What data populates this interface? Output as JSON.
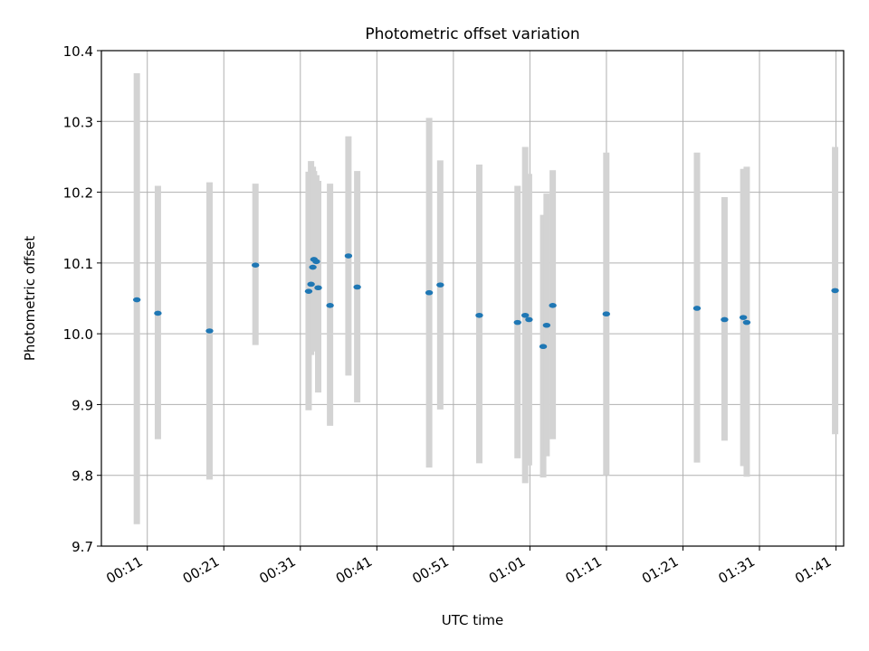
{
  "chart_data": {
    "type": "scatter",
    "title": "Photometric offset variation",
    "xlabel": "UTC time",
    "ylabel": "Photometric offset",
    "xlim": [
      "00:05:00",
      "01:42:00"
    ],
    "ylim": [
      9.7,
      10.4
    ],
    "x_ticks": [
      "00:11",
      "00:21",
      "00:31",
      "00:41",
      "00:51",
      "01:01",
      "01:11",
      "01:21",
      "01:31",
      "01:41"
    ],
    "y_ticks": [
      "9.7",
      "9.8",
      "9.9",
      "10.0",
      "10.1",
      "10.2",
      "10.3",
      "10.4"
    ],
    "grid": true,
    "colors": {
      "marker": "#1f77b4",
      "error_bar": "#d3d3d3",
      "grid": "#b0b0b0"
    },
    "points": [
      {
        "x": "00:09:38",
        "y": 10.048,
        "ylow": 9.731,
        "yhigh": 10.368
      },
      {
        "x": "00:12:23",
        "y": 10.029,
        "ylow": 9.851,
        "yhigh": 10.209
      },
      {
        "x": "00:19:08",
        "y": 10.004,
        "ylow": 9.794,
        "yhigh": 10.214
      },
      {
        "x": "00:25:08",
        "y": 10.097,
        "ylow": 9.984,
        "yhigh": 10.212
      },
      {
        "x": "00:32:05",
        "y": 10.06,
        "ylow": 9.892,
        "yhigh": 10.229
      },
      {
        "x": "00:32:24",
        "y": 10.07,
        "ylow": 9.97,
        "yhigh": 10.244
      },
      {
        "x": "00:32:38",
        "y": 10.094,
        "ylow": 9.975,
        "yhigh": 10.236
      },
      {
        "x": "00:32:47",
        "y": 10.105,
        "ylow": 9.98,
        "yhigh": 10.23
      },
      {
        "x": "00:33:05",
        "y": 10.102,
        "ylow": 9.983,
        "yhigh": 10.224
      },
      {
        "x": "00:33:20",
        "y": 10.065,
        "ylow": 9.917,
        "yhigh": 10.216
      },
      {
        "x": "00:34:53",
        "y": 10.04,
        "ylow": 9.87,
        "yhigh": 10.212
      },
      {
        "x": "00:37:17",
        "y": 10.11,
        "ylow": 9.941,
        "yhigh": 10.279
      },
      {
        "x": "00:38:26",
        "y": 10.066,
        "ylow": 9.903,
        "yhigh": 10.23
      },
      {
        "x": "00:47:50",
        "y": 10.058,
        "ylow": 9.811,
        "yhigh": 10.305
      },
      {
        "x": "00:49:17",
        "y": 10.069,
        "ylow": 9.893,
        "yhigh": 10.245
      },
      {
        "x": "00:54:23",
        "y": 10.026,
        "ylow": 9.817,
        "yhigh": 10.239
      },
      {
        "x": "00:59:23",
        "y": 10.016,
        "ylow": 9.824,
        "yhigh": 10.209
      },
      {
        "x": "01:00:23",
        "y": 10.026,
        "ylow": 9.789,
        "yhigh": 10.264
      },
      {
        "x": "01:00:53",
        "y": 10.02,
        "ylow": 9.814,
        "yhigh": 10.226
      },
      {
        "x": "01:02:44",
        "y": 9.982,
        "ylow": 9.797,
        "yhigh": 10.168
      },
      {
        "x": "01:03:11",
        "y": 10.012,
        "ylow": 9.827,
        "yhigh": 10.198
      },
      {
        "x": "01:03:59",
        "y": 10.04,
        "ylow": 9.851,
        "yhigh": 10.231
      },
      {
        "x": "01:10:59",
        "y": 10.028,
        "ylow": 9.8,
        "yhigh": 10.256
      },
      {
        "x": "01:22:50",
        "y": 10.036,
        "ylow": 9.818,
        "yhigh": 10.256
      },
      {
        "x": "01:26:26",
        "y": 10.02,
        "ylow": 9.849,
        "yhigh": 10.193
      },
      {
        "x": "01:28:53",
        "y": 10.023,
        "ylow": 9.813,
        "yhigh": 10.233
      },
      {
        "x": "01:29:20",
        "y": 10.016,
        "ylow": 9.798,
        "yhigh": 10.236
      },
      {
        "x": "01:40:53",
        "y": 10.061,
        "ylow": 9.858,
        "yhigh": 10.264
      }
    ]
  }
}
